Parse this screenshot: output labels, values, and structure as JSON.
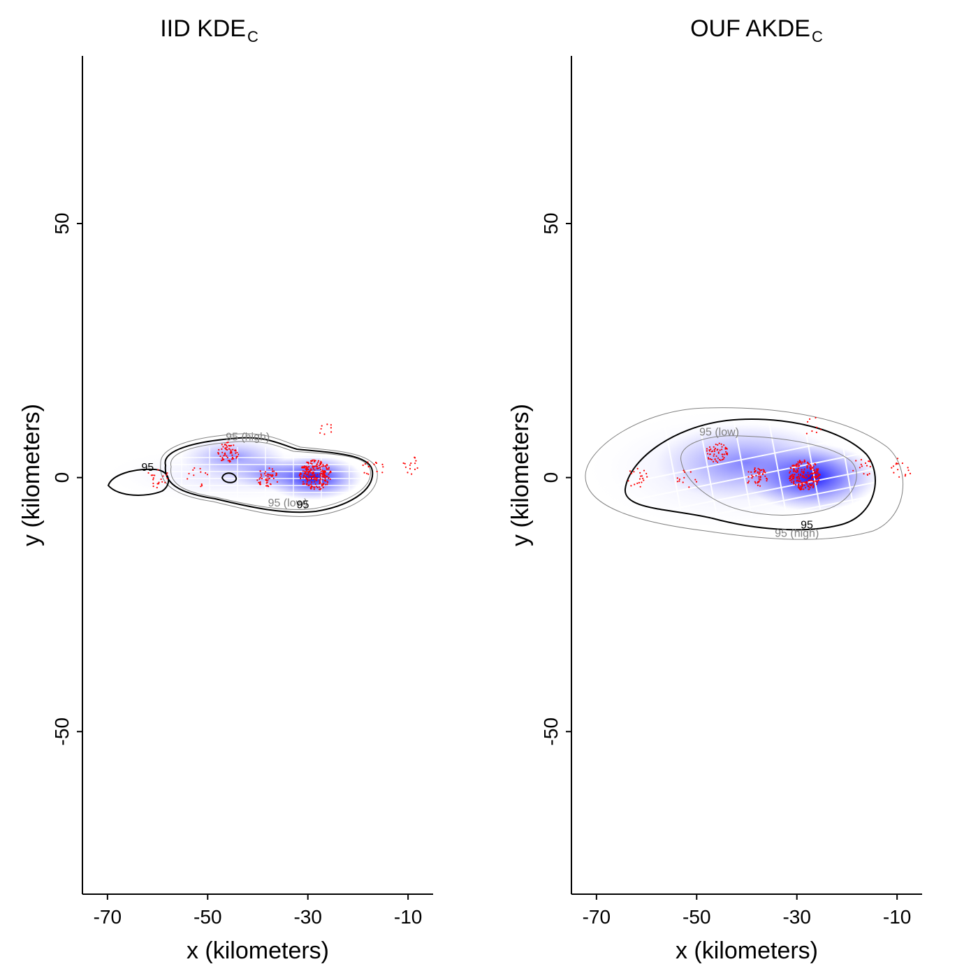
{
  "chart_data": [
    {
      "type": "heatmap",
      "title": "IID KDE",
      "title_subscript": "C",
      "xlabel": "x (kilometers)",
      "ylabel": "y (kilometers)",
      "xlim": [
        -75,
        -5
      ],
      "ylim": [
        -82,
        83
      ],
      "xticks": [
        -70,
        -50,
        -30,
        -10
      ],
      "yticks": [
        -50,
        0,
        50
      ],
      "colors": {
        "density": "#0000ff",
        "points": "#ff0000",
        "contour": "#000000",
        "ci_contour": "#808080",
        "grid": "#ffffff"
      },
      "contour_labels": [
        {
          "text": "95",
          "x": -62,
          "y": 1.3
        },
        {
          "text": "95 (high)",
          "x": -42,
          "y": 7.3
        },
        {
          "text": "95 (low)",
          "x": -34,
          "y": -5.7
        },
        {
          "text": "95",
          "x": -31,
          "y": -6
        }
      ],
      "density_centers": [
        {
          "x": -29,
          "y": 0,
          "weight": 1.0
        },
        {
          "x": -45,
          "y": 4.5,
          "weight": 0.45
        },
        {
          "x": -38,
          "y": 1,
          "weight": 0.35
        }
      ],
      "point_clusters": [
        {
          "x": -28.5,
          "y": 0.5,
          "n": 220
        },
        {
          "x": -46,
          "y": 5,
          "n": 60
        },
        {
          "x": -38,
          "y": 0,
          "n": 50
        },
        {
          "x": -60,
          "y": 0,
          "n": 20
        },
        {
          "x": -9,
          "y": 2,
          "n": 15
        },
        {
          "x": -17,
          "y": 2,
          "n": 15
        },
        {
          "x": -27,
          "y": 10,
          "n": 8
        },
        {
          "x": -52,
          "y": 0,
          "n": 12
        }
      ]
    },
    {
      "type": "heatmap",
      "title": "OUF AKDE",
      "title_subscript": "C",
      "xlabel": "x (kilometers)",
      "ylabel": "y (kilometers)",
      "xlim": [
        -75,
        -5
      ],
      "ylim": [
        -82,
        83
      ],
      "xticks": [
        -70,
        -50,
        -30,
        -10
      ],
      "yticks": [
        -50,
        0,
        50
      ],
      "colors": {
        "density": "#0000ff",
        "points": "#ff0000",
        "contour": "#000000",
        "ci_contour": "#808080",
        "grid": "#ffffff"
      },
      "contour_labels": [
        {
          "text": "95 (low)",
          "x": -45.5,
          "y": 8.3
        },
        {
          "text": "95",
          "x": -28,
          "y": -10
        },
        {
          "text": "95 (high)",
          "x": -30,
          "y": -11.7
        }
      ],
      "density_centers": [
        {
          "x": -27,
          "y": 0,
          "weight": 1.0
        },
        {
          "x": -40,
          "y": 3,
          "weight": 0.45
        }
      ],
      "point_clusters": [
        {
          "x": -28.5,
          "y": 0.5,
          "n": 220
        },
        {
          "x": -46,
          "y": 5,
          "n": 60
        },
        {
          "x": -38,
          "y": 0,
          "n": 50
        },
        {
          "x": -62,
          "y": 0,
          "n": 20
        },
        {
          "x": -9,
          "y": 2,
          "n": 15
        },
        {
          "x": -17,
          "y": 2,
          "n": 15
        },
        {
          "x": -27,
          "y": 10,
          "n": 8
        },
        {
          "x": -52,
          "y": 0,
          "n": 12
        }
      ]
    }
  ]
}
